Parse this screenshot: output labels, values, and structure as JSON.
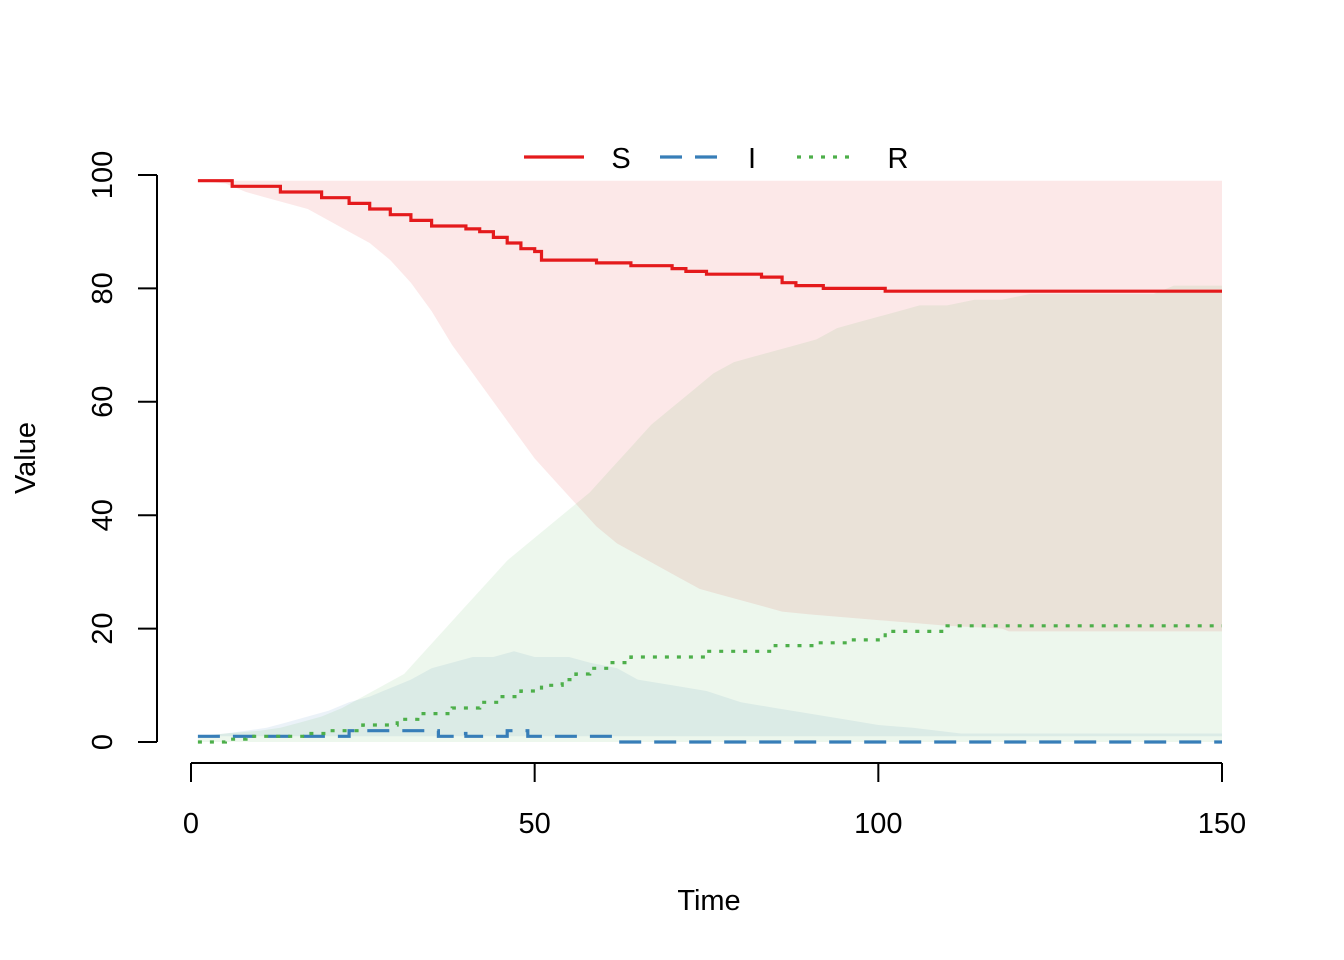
{
  "chart_data": {
    "type": "line",
    "title": "",
    "xlabel": "Time",
    "ylabel": "Value",
    "xlim": [
      0,
      150
    ],
    "ylim": [
      0,
      100
    ],
    "x_ticks": [
      "0",
      "50",
      "100",
      "150"
    ],
    "y_ticks": [
      "0",
      "20",
      "40",
      "60",
      "80",
      "100"
    ],
    "grid": false,
    "legend": {
      "placement": "top-center",
      "entries": [
        "S",
        "I",
        "R"
      ]
    },
    "series": [
      {
        "name": "S",
        "color": "#e41a1c",
        "line": "solid",
        "points": [
          [
            1,
            99
          ],
          [
            6,
            99
          ],
          [
            6,
            98
          ],
          [
            13,
            98
          ],
          [
            13,
            97
          ],
          [
            19,
            97
          ],
          [
            19,
            96
          ],
          [
            23,
            96
          ],
          [
            23,
            95
          ],
          [
            26,
            95
          ],
          [
            26,
            94
          ],
          [
            29,
            94
          ],
          [
            29,
            93
          ],
          [
            32,
            93
          ],
          [
            32,
            92
          ],
          [
            35,
            92
          ],
          [
            35,
            91
          ],
          [
            40,
            91
          ],
          [
            40,
            90.5
          ],
          [
            42,
            90.5
          ],
          [
            42,
            90
          ],
          [
            44,
            90
          ],
          [
            44,
            89
          ],
          [
            46,
            89
          ],
          [
            46,
            88
          ],
          [
            48,
            88
          ],
          [
            48,
            87
          ],
          [
            50,
            87
          ],
          [
            50,
            86.5
          ],
          [
            51,
            86.5
          ],
          [
            51,
            85
          ],
          [
            59,
            85
          ],
          [
            59,
            84.5
          ],
          [
            64,
            84.5
          ],
          [
            64,
            84
          ],
          [
            70,
            84
          ],
          [
            70,
            83.5
          ],
          [
            72,
            83.5
          ],
          [
            72,
            83
          ],
          [
            75,
            83
          ],
          [
            75,
            82.5
          ],
          [
            83,
            82.5
          ],
          [
            83,
            82
          ],
          [
            86,
            82
          ],
          [
            86,
            81
          ],
          [
            88,
            81
          ],
          [
            88,
            80.5
          ],
          [
            92,
            80.5
          ],
          [
            92,
            80
          ],
          [
            101,
            80
          ],
          [
            101,
            79.5
          ],
          [
            150,
            79.5
          ]
        ],
        "band_upper": [
          [
            1,
            99
          ],
          [
            150,
            99
          ]
        ],
        "band_lower": [
          [
            1,
            99
          ],
          [
            5,
            98.5
          ],
          [
            8,
            97
          ],
          [
            11,
            96
          ],
          [
            14,
            95
          ],
          [
            17,
            94
          ],
          [
            20,
            92
          ],
          [
            23,
            90
          ],
          [
            26,
            88
          ],
          [
            29,
            85
          ],
          [
            32,
            81
          ],
          [
            35,
            76
          ],
          [
            38,
            70
          ],
          [
            41,
            65
          ],
          [
            44,
            60
          ],
          [
            47,
            55
          ],
          [
            50,
            50
          ],
          [
            53,
            46
          ],
          [
            56,
            42
          ],
          [
            59,
            38
          ],
          [
            62,
            35
          ],
          [
            65,
            33
          ],
          [
            68,
            31
          ],
          [
            71,
            29
          ],
          [
            74,
            27
          ],
          [
            77,
            26
          ],
          [
            80,
            25
          ],
          [
            83,
            24
          ],
          [
            86,
            23
          ],
          [
            90,
            22.5
          ],
          [
            95,
            22
          ],
          [
            100,
            21.5
          ],
          [
            105,
            21
          ],
          [
            110,
            20.5
          ],
          [
            118,
            20
          ],
          [
            119,
            19.5
          ],
          [
            150,
            19.5
          ]
        ]
      },
      {
        "name": "I",
        "color": "#377eb8",
        "line": "dashed",
        "points": [
          [
            1,
            1
          ],
          [
            23,
            1
          ],
          [
            23,
            2
          ],
          [
            36,
            2
          ],
          [
            36,
            1
          ],
          [
            39,
            1
          ],
          [
            39,
            1.5
          ],
          [
            40,
            1.5
          ],
          [
            40,
            1
          ],
          [
            46,
            1
          ],
          [
            46,
            2
          ],
          [
            49,
            2
          ],
          [
            49,
            1
          ],
          [
            61,
            1
          ],
          [
            61,
            0
          ],
          [
            150,
            0
          ]
        ],
        "band_upper": [
          [
            1,
            1
          ],
          [
            5,
            1.5
          ],
          [
            8,
            2
          ],
          [
            11,
            2.5
          ],
          [
            14,
            3.5
          ],
          [
            17,
            4.5
          ],
          [
            20,
            5.5
          ],
          [
            23,
            7
          ],
          [
            26,
            8
          ],
          [
            29,
            9.5
          ],
          [
            32,
            11
          ],
          [
            35,
            13
          ],
          [
            38,
            14
          ],
          [
            41,
            15
          ],
          [
            44,
            15
          ],
          [
            47,
            16
          ],
          [
            50,
            15
          ],
          [
            55,
            15
          ],
          [
            58,
            14
          ],
          [
            62,
            13
          ],
          [
            65,
            11
          ],
          [
            70,
            10
          ],
          [
            75,
            9
          ],
          [
            80,
            7
          ],
          [
            85,
            6
          ],
          [
            90,
            5
          ],
          [
            95,
            4
          ],
          [
            100,
            3
          ],
          [
            105,
            2.5
          ],
          [
            112,
            1.5
          ],
          [
            150,
            1.5
          ]
        ],
        "band_lower": [
          [
            1,
            1
          ],
          [
            150,
            1
          ]
        ]
      },
      {
        "name": "R",
        "color": "#4daf4a",
        "line": "dotted",
        "points": [
          [
            1,
            0
          ],
          [
            5,
            0
          ],
          [
            5,
            0.5
          ],
          [
            8,
            0.5
          ],
          [
            8,
            1
          ],
          [
            17,
            1
          ],
          [
            17,
            1.5
          ],
          [
            20,
            1.5
          ],
          [
            20,
            2
          ],
          [
            25,
            2
          ],
          [
            25,
            3
          ],
          [
            30,
            3
          ],
          [
            30,
            4
          ],
          [
            33,
            4
          ],
          [
            33,
            5
          ],
          [
            38,
            5
          ],
          [
            38,
            6
          ],
          [
            42,
            6
          ],
          [
            42,
            7
          ],
          [
            45,
            7
          ],
          [
            45,
            8
          ],
          [
            48,
            8
          ],
          [
            48,
            9
          ],
          [
            51,
            9
          ],
          [
            51,
            10
          ],
          [
            54,
            10
          ],
          [
            54,
            11
          ],
          [
            56,
            11
          ],
          [
            56,
            12
          ],
          [
            58,
            12
          ],
          [
            58,
            13
          ],
          [
            61,
            13
          ],
          [
            61,
            14
          ],
          [
            64,
            14
          ],
          [
            64,
            15
          ],
          [
            75,
            15
          ],
          [
            75,
            16
          ],
          [
            85,
            16
          ],
          [
            85,
            17
          ],
          [
            91,
            17
          ],
          [
            91,
            17.5
          ],
          [
            96,
            17.5
          ],
          [
            96,
            18
          ],
          [
            101,
            18
          ],
          [
            101,
            19.5
          ],
          [
            110,
            19.5
          ],
          [
            110,
            20.5
          ],
          [
            150,
            20.5
          ]
        ],
        "band_upper": [
          [
            1,
            1
          ],
          [
            5,
            1.5
          ],
          [
            10,
            2
          ],
          [
            13,
            2.5
          ],
          [
            16,
            3.5
          ],
          [
            19,
            4.5
          ],
          [
            22,
            6
          ],
          [
            25,
            8
          ],
          [
            28,
            10
          ],
          [
            31,
            12
          ],
          [
            34,
            16
          ],
          [
            37,
            20
          ],
          [
            40,
            24
          ],
          [
            43,
            28
          ],
          [
            46,
            32
          ],
          [
            49,
            35
          ],
          [
            52,
            38
          ],
          [
            55,
            41
          ],
          [
            58,
            44
          ],
          [
            61,
            48
          ],
          [
            64,
            52
          ],
          [
            67,
            56
          ],
          [
            70,
            59
          ],
          [
            73,
            62
          ],
          [
            76,
            65
          ],
          [
            79,
            67
          ],
          [
            82,
            68
          ],
          [
            85,
            69
          ],
          [
            88,
            70
          ],
          [
            91,
            71
          ],
          [
            94,
            73
          ],
          [
            97,
            74
          ],
          [
            100,
            75
          ],
          [
            103,
            76
          ],
          [
            106,
            77
          ],
          [
            110,
            77
          ],
          [
            114,
            78
          ],
          [
            118,
            78
          ],
          [
            122,
            79
          ],
          [
            140,
            79
          ],
          [
            143,
            80.5
          ],
          [
            150,
            80.5
          ]
        ],
        "band_lower": [
          [
            1,
            0
          ],
          [
            150,
            0
          ]
        ]
      }
    ]
  }
}
